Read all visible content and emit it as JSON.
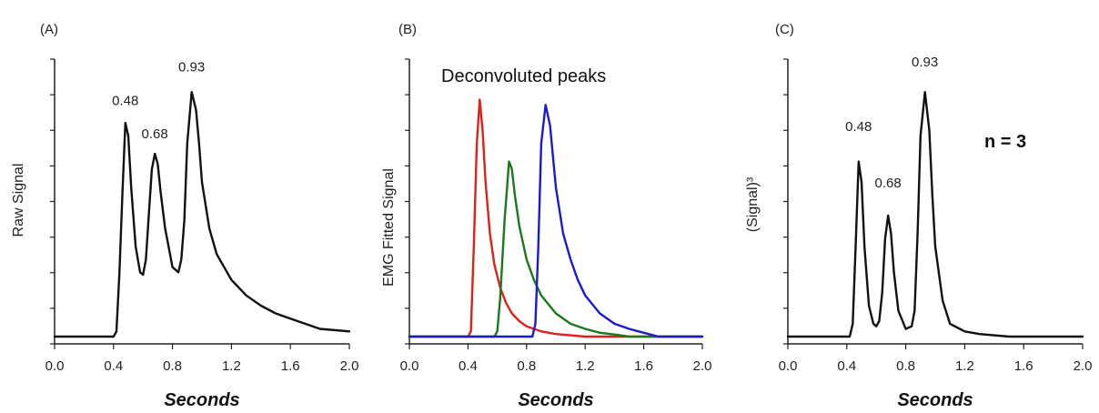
{
  "chart_data": [
    {
      "type": "line",
      "panel_label": "(A)",
      "title": "",
      "xlabel": "Seconds",
      "ylabel": "Raw Signal",
      "xlim": [
        0.0,
        2.0
      ],
      "ylim": [
        0,
        1.0
      ],
      "x_ticks": [
        "0.0",
        "0.4",
        "0.8",
        "1.2",
        "1.6",
        "2.0"
      ],
      "y_tick_labels_shown": false,
      "y_minor_ticks": 8,
      "annotations": [
        {
          "text": "0.48",
          "x": 0.48,
          "y": 0.85
        },
        {
          "text": "0.68",
          "x": 0.68,
          "y": 0.72
        },
        {
          "text": "0.93",
          "x": 0.93,
          "y": 0.98
        }
      ],
      "series": [
        {
          "color": "#111111",
          "x": [
            0.0,
            0.4,
            0.42,
            0.44,
            0.46,
            0.48,
            0.5,
            0.52,
            0.55,
            0.58,
            0.6,
            0.62,
            0.64,
            0.66,
            0.68,
            0.7,
            0.72,
            0.75,
            0.8,
            0.84,
            0.86,
            0.88,
            0.9,
            0.93,
            0.96,
            0.98,
            1.0,
            1.05,
            1.1,
            1.2,
            1.3,
            1.4,
            1.5,
            1.6,
            1.7,
            1.8,
            2.0
          ],
          "y": [
            0.0,
            0.0,
            0.02,
            0.25,
            0.55,
            0.83,
            0.78,
            0.58,
            0.35,
            0.25,
            0.24,
            0.3,
            0.48,
            0.65,
            0.71,
            0.67,
            0.56,
            0.42,
            0.27,
            0.25,
            0.3,
            0.45,
            0.75,
            0.95,
            0.88,
            0.75,
            0.6,
            0.42,
            0.32,
            0.22,
            0.16,
            0.12,
            0.09,
            0.07,
            0.05,
            0.03,
            0.02
          ]
        }
      ]
    },
    {
      "type": "line",
      "panel_label": "(B)",
      "title": "Deconvoluted peaks",
      "xlabel": "Seconds",
      "ylabel": "EMG Fitted Signal",
      "xlim": [
        0.0,
        2.0
      ],
      "ylim": [
        0,
        1.0
      ],
      "x_ticks": [
        "0.0",
        "0.4",
        "0.8",
        "1.2",
        "1.6",
        "2.0"
      ],
      "y_tick_labels_shown": false,
      "y_minor_ticks": 8,
      "series": [
        {
          "color": "#e0201a",
          "x": [
            0.0,
            0.4,
            0.42,
            0.44,
            0.46,
            0.48,
            0.5,
            0.52,
            0.55,
            0.58,
            0.62,
            0.66,
            0.7,
            0.75,
            0.8,
            0.9,
            1.0,
            1.1,
            1.2,
            1.4,
            2.0
          ],
          "y": [
            0.0,
            0.0,
            0.02,
            0.35,
            0.75,
            0.92,
            0.8,
            0.6,
            0.4,
            0.28,
            0.19,
            0.13,
            0.09,
            0.06,
            0.04,
            0.02,
            0.01,
            0.005,
            0.0,
            0.0,
            0.0
          ]
        },
        {
          "color": "#1a7a1a",
          "x": [
            0.0,
            0.58,
            0.6,
            0.62,
            0.65,
            0.68,
            0.7,
            0.72,
            0.75,
            0.8,
            0.85,
            0.9,
            1.0,
            1.1,
            1.2,
            1.3,
            1.4,
            1.5,
            1.6,
            2.0
          ],
          "y": [
            0.0,
            0.0,
            0.02,
            0.15,
            0.45,
            0.68,
            0.65,
            0.55,
            0.43,
            0.3,
            0.22,
            0.16,
            0.09,
            0.05,
            0.03,
            0.015,
            0.008,
            0.0,
            0.0,
            0.0
          ]
        },
        {
          "color": "#1a1ad0",
          "x": [
            0.0,
            0.84,
            0.86,
            0.88,
            0.9,
            0.93,
            0.96,
            0.98,
            1.0,
            1.05,
            1.1,
            1.15,
            1.2,
            1.3,
            1.4,
            1.5,
            1.6,
            1.7,
            1.8,
            2.0
          ],
          "y": [
            0.0,
            0.0,
            0.05,
            0.35,
            0.75,
            0.9,
            0.82,
            0.7,
            0.58,
            0.4,
            0.3,
            0.22,
            0.16,
            0.09,
            0.05,
            0.03,
            0.015,
            0.0,
            0.0,
            0.0
          ]
        }
      ]
    },
    {
      "type": "line",
      "panel_label": "(C)",
      "title": "",
      "xlabel": "Seconds",
      "ylabel": "(Signal)³",
      "xlim": [
        0.0,
        2.0
      ],
      "ylim": [
        0,
        1.0
      ],
      "x_ticks": [
        "0.0",
        "0.4",
        "0.8",
        "1.2",
        "1.6",
        "2.0"
      ],
      "y_tick_labels_shown": false,
      "y_minor_ticks": 8,
      "note": "n = 3",
      "annotations": [
        {
          "text": "0.48",
          "x": 0.48,
          "y": 0.75
        },
        {
          "text": "0.68",
          "x": 0.68,
          "y": 0.53
        },
        {
          "text": "0.93",
          "x": 0.93,
          "y": 1.0
        }
      ],
      "series": [
        {
          "color": "#111111",
          "x": [
            0.0,
            0.42,
            0.44,
            0.46,
            0.48,
            0.5,
            0.52,
            0.55,
            0.58,
            0.6,
            0.62,
            0.64,
            0.66,
            0.68,
            0.7,
            0.72,
            0.75,
            0.8,
            0.84,
            0.86,
            0.88,
            0.9,
            0.93,
            0.96,
            0.98,
            1.0,
            1.05,
            1.1,
            1.2,
            1.3,
            1.5,
            2.0
          ],
          "y": [
            0.0,
            0.0,
            0.05,
            0.35,
            0.68,
            0.6,
            0.35,
            0.12,
            0.05,
            0.04,
            0.06,
            0.17,
            0.38,
            0.47,
            0.4,
            0.25,
            0.1,
            0.03,
            0.04,
            0.1,
            0.4,
            0.78,
            0.95,
            0.8,
            0.55,
            0.35,
            0.14,
            0.05,
            0.02,
            0.01,
            0.0,
            0.0
          ]
        }
      ]
    }
  ]
}
